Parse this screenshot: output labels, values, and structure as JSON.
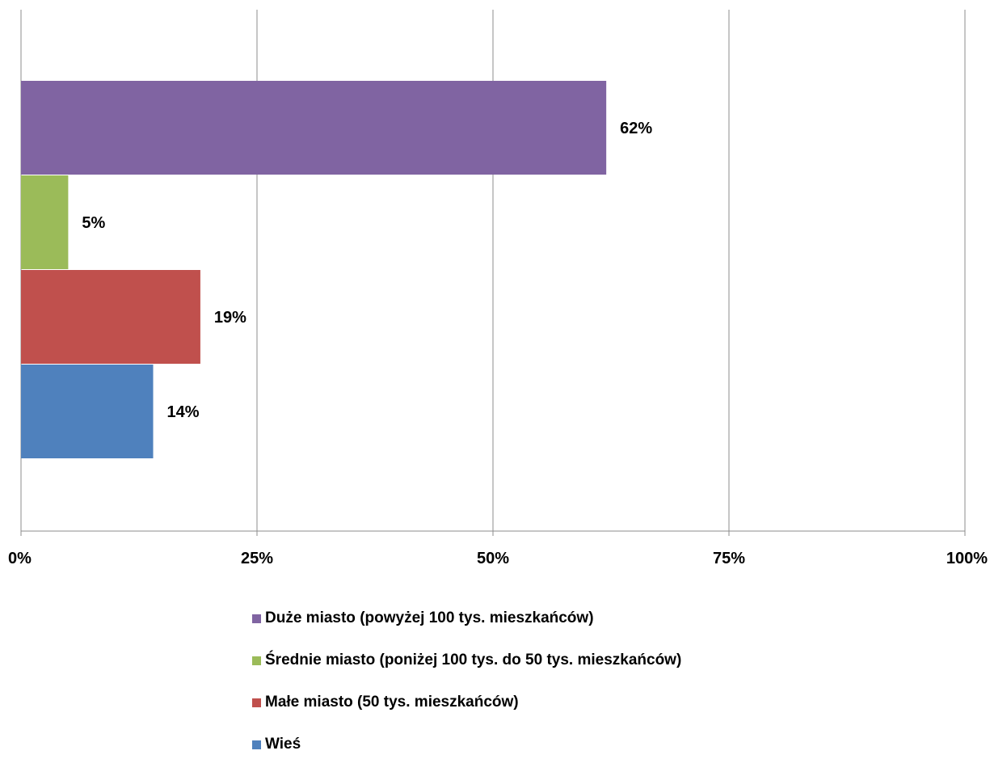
{
  "chart_data": {
    "type": "bar",
    "orientation": "horizontal",
    "title": "",
    "xlabel": "",
    "ylabel": "",
    "xlim": [
      0,
      100
    ],
    "x_ticks": [
      "0%",
      "25%",
      "50%",
      "75%",
      "100%"
    ],
    "grid": true,
    "legend_position": "bottom",
    "series": [
      {
        "name": "Duże miasto (powyżej 100 tys. mieszkańców)",
        "value": 62,
        "label": "62%",
        "color": "#8064a2"
      },
      {
        "name": "Średnie miasto (poniżej 100 tys. do 50 tys. mieszkańców)",
        "value": 5,
        "label": "5%",
        "color": "#9bbb59"
      },
      {
        "name": "Małe miasto (50 tys. mieszkańców)",
        "value": 19,
        "label": "19%",
        "color": "#c0504d"
      },
      {
        "name": "Wieś",
        "value": 14,
        "label": "14%",
        "color": "#4f81bd"
      }
    ]
  }
}
